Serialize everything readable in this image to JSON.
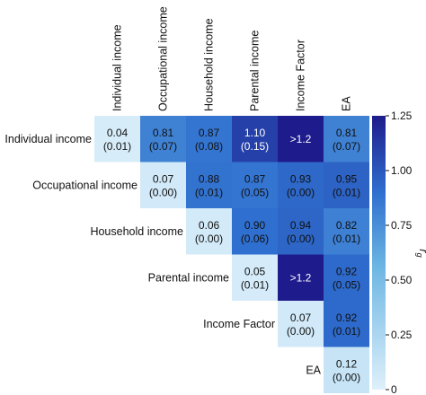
{
  "chart_data": {
    "type": "heatmap",
    "variables": [
      "Individual income",
      "Occupational income",
      "Household income",
      "Parental income",
      "Income Factor",
      "EA"
    ],
    "column_labels": [
      "Individual income",
      "Occupational income",
      "Household income",
      "Parental income",
      "Income Factor",
      "EA"
    ],
    "row_labels": [
      "Individual income",
      "Occupational income",
      "Household income",
      "Parental income",
      "Income Factor",
      "EA"
    ],
    "cells": [
      {
        "row": 0,
        "col": 0,
        "value": 0.04,
        "display": "0.04",
        "se": "(0.01)"
      },
      {
        "row": 0,
        "col": 1,
        "value": 0.81,
        "display": "0.81",
        "se": "(0.07)"
      },
      {
        "row": 0,
        "col": 2,
        "value": 0.87,
        "display": "0.87",
        "se": "(0.08)"
      },
      {
        "row": 0,
        "col": 3,
        "value": 1.1,
        "display": "1.10",
        "se": "(0.15)"
      },
      {
        "row": 0,
        "col": 4,
        "value": 1.25,
        "display": ">1.2",
        "se": ""
      },
      {
        "row": 0,
        "col": 5,
        "value": 0.81,
        "display": "0.81",
        "se": "(0.07)"
      },
      {
        "row": 1,
        "col": 1,
        "value": 0.07,
        "display": "0.07",
        "se": "(0.00)"
      },
      {
        "row": 1,
        "col": 2,
        "value": 0.88,
        "display": "0.88",
        "se": "(0.01)"
      },
      {
        "row": 1,
        "col": 3,
        "value": 0.87,
        "display": "0.87",
        "se": "(0.05)"
      },
      {
        "row": 1,
        "col": 4,
        "value": 0.93,
        "display": "0.93",
        "se": "(0.00)"
      },
      {
        "row": 1,
        "col": 5,
        "value": 0.95,
        "display": "0.95",
        "se": "(0.01)"
      },
      {
        "row": 2,
        "col": 2,
        "value": 0.06,
        "display": "0.06",
        "se": "(0.00)"
      },
      {
        "row": 2,
        "col": 3,
        "value": 0.9,
        "display": "0.90",
        "se": "(0.06)"
      },
      {
        "row": 2,
        "col": 4,
        "value": 0.94,
        "display": "0.94",
        "se": "(0.00)"
      },
      {
        "row": 2,
        "col": 5,
        "value": 0.82,
        "display": "0.82",
        "se": "(0.01)"
      },
      {
        "row": 3,
        "col": 3,
        "value": 0.05,
        "display": "0.05",
        "se": "(0.01)"
      },
      {
        "row": 3,
        "col": 4,
        "value": 1.25,
        "display": ">1.2",
        "se": ""
      },
      {
        "row": 3,
        "col": 5,
        "value": 0.92,
        "display": "0.92",
        "se": "(0.05)"
      },
      {
        "row": 4,
        "col": 4,
        "value": 0.07,
        "display": "0.07",
        "se": "(0.00)"
      },
      {
        "row": 4,
        "col": 5,
        "value": 0.92,
        "display": "0.92",
        "se": "(0.01)"
      },
      {
        "row": 5,
        "col": 5,
        "value": 0.12,
        "display": "0.12",
        "se": "(0.00)"
      }
    ],
    "colorbar": {
      "label": "r_g",
      "min": 0,
      "max": 1.25,
      "ticks": [
        0,
        0.25,
        0.5,
        0.75,
        1.0,
        1.25
      ],
      "tick_labels": [
        "0",
        "0.25",
        "0.50",
        "0.75",
        "1.00",
        "1.25"
      ],
      "low_color": "#dff0fb",
      "mid_color": "#4aa3da",
      "high_color": "#1e1c8c"
    },
    "grid": false,
    "legend": "colorbar-right"
  }
}
